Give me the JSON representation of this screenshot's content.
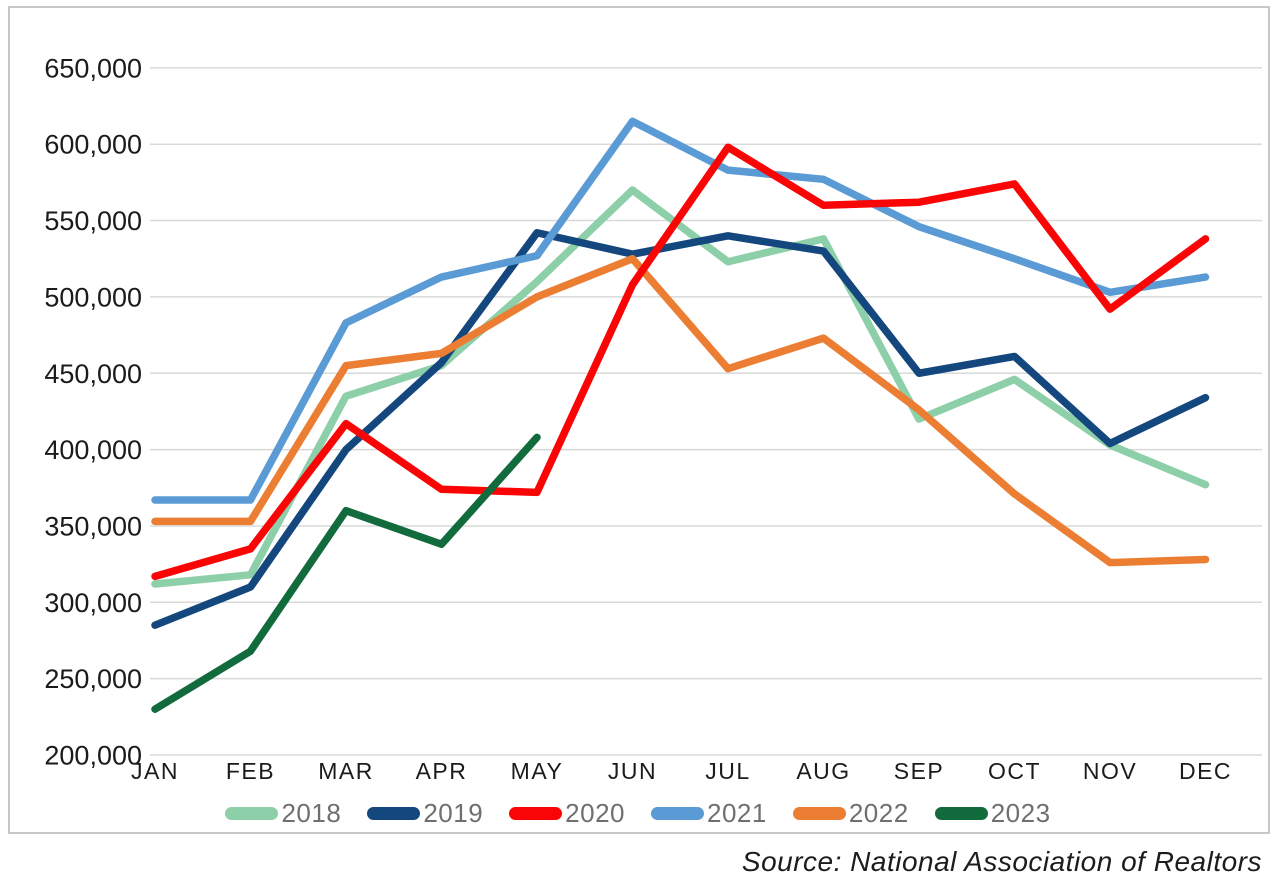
{
  "chart_data": {
    "type": "line",
    "title": "",
    "x_categories": [
      "JAN",
      "FEB",
      "MAR",
      "APR",
      "MAY",
      "JUN",
      "JUL",
      "AUG",
      "SEP",
      "OCT",
      "NOV",
      "DEC"
    ],
    "y_axis": {
      "min": 200000,
      "max": 650000,
      "step": 50000,
      "tick_labels": [
        "200,000",
        "250,000",
        "300,000",
        "350,000",
        "400,000",
        "450,000",
        "500,000",
        "550,000",
        "600,000",
        "650,000"
      ]
    },
    "grid": "horizontal-only",
    "legend_position": "bottom",
    "series": [
      {
        "name": "2018",
        "color": "#8DCFA8",
        "values": [
          312000,
          318000,
          435000,
          455000,
          510000,
          570000,
          523000,
          538000,
          420000,
          446000,
          403000,
          377000
        ]
      },
      {
        "name": "2019",
        "color": "#14477D",
        "values": [
          285000,
          310000,
          400000,
          457000,
          542000,
          528000,
          540000,
          530000,
          450000,
          461000,
          404000,
          434000
        ]
      },
      {
        "name": "2020",
        "color": "#FA0505",
        "values": [
          317000,
          335000,
          417000,
          374000,
          372000,
          508000,
          598000,
          560000,
          562000,
          574000,
          492000,
          538000
        ]
      },
      {
        "name": "2021",
        "color": "#5B9BD5",
        "values": [
          367000,
          367000,
          483000,
          513000,
          527000,
          615000,
          583000,
          577000,
          546000,
          525000,
          503000,
          513000
        ]
      },
      {
        "name": "2022",
        "color": "#EC7E33",
        "values": [
          353000,
          353000,
          455000,
          463000,
          500000,
          525000,
          453000,
          473000,
          426000,
          371000,
          326000,
          328000
        ]
      },
      {
        "name": "2023",
        "color": "#116B3C",
        "values": [
          230000,
          268000,
          360000,
          338000,
          408000
        ]
      }
    ],
    "draw_order": [
      "2018",
      "2019",
      "2021",
      "2022",
      "2020",
      "2023"
    ]
  },
  "styling": {
    "card_border_color": "#C8C8C8",
    "gridline_color": "#D9D9D9",
    "axis_text_color": "#1b1b1b",
    "legend_text_color": "#6F6F6F"
  },
  "source_note": "Source: National Association of Realtors"
}
